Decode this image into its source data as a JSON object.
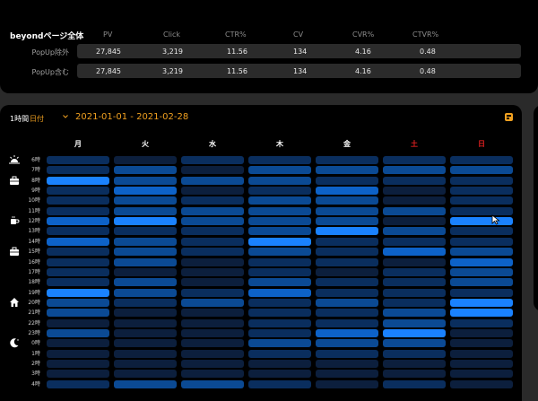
{
  "summary": {
    "title": "beyondページ全体",
    "columns": [
      "PV",
      "Click",
      "CTR%",
      "CV",
      "CVR%",
      "CTVR%"
    ],
    "rows": [
      {
        "label": "PopUp除外",
        "values": [
          "27,845",
          "3,219",
          "11.56",
          "134",
          "4.16",
          "0.48"
        ]
      },
      {
        "label": "PopUp含む",
        "values": [
          "27,845",
          "3,219",
          "11.56",
          "134",
          "4.16",
          "0.48"
        ]
      }
    ]
  },
  "filters": {
    "unit_label": "1時間",
    "unit_select": "日付",
    "date_range": "2021-01-01  - 2021-02-28"
  },
  "colors": {
    "accent": "#f0a020",
    "weekend": "#e02020",
    "heat_levels": [
      "#0c1f3d",
      "#0a2e5e",
      "#0b4a94",
      "#0d62c8",
      "#1a82ff"
    ]
  },
  "days": [
    {
      "label": "月",
      "weekend": false
    },
    {
      "label": "火",
      "weekend": false
    },
    {
      "label": "水",
      "weekend": false
    },
    {
      "label": "木",
      "weekend": false
    },
    {
      "label": "金",
      "weekend": false
    },
    {
      "label": "土",
      "weekend": true
    },
    {
      "label": "日",
      "weekend": true
    }
  ],
  "hours": [
    "6時",
    "7時",
    "8時",
    "9時",
    "10時",
    "11時",
    "12時",
    "13時",
    "14時",
    "15時",
    "16時",
    "17時",
    "18時",
    "19時",
    "20時",
    "21時",
    "22時",
    "23時",
    "0時",
    "1時",
    "2時",
    "3時",
    "4時"
  ],
  "time_icons": [
    {
      "name": "sunrise-icon",
      "hour_index": 0
    },
    {
      "name": "briefcase-icon",
      "hour_index": 2
    },
    {
      "name": "coffee-icon",
      "hour_index": 6
    },
    {
      "name": "briefcase-icon",
      "hour_index": 9
    },
    {
      "name": "home-icon",
      "hour_index": 14
    },
    {
      "name": "moon-icon",
      "hour_index": 18
    }
  ],
  "heatmap": [
    [
      1,
      0,
      1,
      1,
      1,
      1,
      1
    ],
    [
      1,
      2,
      0,
      2,
      2,
      2,
      2
    ],
    [
      4,
      2,
      2,
      2,
      1,
      1,
      1
    ],
    [
      1,
      3,
      0,
      1,
      3,
      0,
      1
    ],
    [
      1,
      2,
      1,
      2,
      2,
      0,
      1
    ],
    [
      1,
      2,
      2,
      2,
      2,
      2,
      1
    ],
    [
      3,
      4,
      2,
      2,
      2,
      0,
      4
    ],
    [
      1,
      1,
      1,
      2,
      4,
      2,
      1
    ],
    [
      3,
      2,
      1,
      4,
      1,
      1,
      1
    ],
    [
      1,
      2,
      1,
      2,
      1,
      3,
      2
    ],
    [
      1,
      2,
      0,
      1,
      1,
      0,
      3
    ],
    [
      1,
      0,
      0,
      1,
      0,
      1,
      2
    ],
    [
      1,
      2,
      0,
      2,
      1,
      1,
      2
    ],
    [
      4,
      2,
      1,
      3,
      1,
      1,
      1
    ],
    [
      2,
      1,
      2,
      1,
      2,
      1,
      4
    ],
    [
      2,
      0,
      0,
      1,
      1,
      2,
      4
    ],
    [
      0,
      0,
      0,
      1,
      1,
      2,
      1
    ],
    [
      2,
      0,
      0,
      1,
      3,
      4,
      0
    ],
    [
      0,
      0,
      0,
      2,
      2,
      2,
      0
    ],
    [
      0,
      0,
      0,
      1,
      1,
      1,
      0
    ],
    [
      0,
      0,
      0,
      0,
      0,
      0,
      0
    ],
    [
      0,
      0,
      0,
      0,
      0,
      0,
      0
    ],
    [
      1,
      2,
      2,
      1,
      0,
      1,
      0
    ]
  ]
}
